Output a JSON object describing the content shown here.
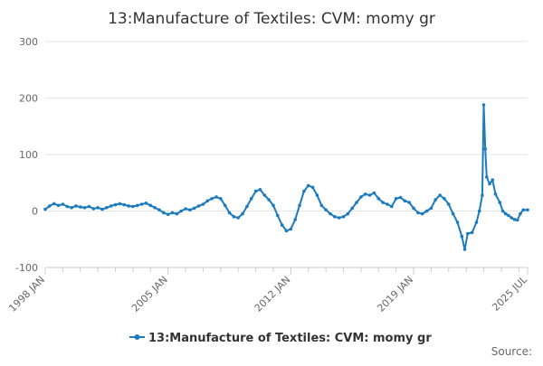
{
  "chart_data": {
    "type": "line",
    "title": "13:Manufacture of Textiles: CVM: momy gr",
    "xlabel": "",
    "ylabel": "",
    "x_range": [
      "1998-01",
      "2025-07"
    ],
    "ylim": [
      -100,
      300
    ],
    "yticks": [
      -100,
      0,
      100,
      200,
      300
    ],
    "xticks": [
      {
        "label": "1998 JAN",
        "date": "1998-01"
      },
      {
        "label": "2005 JAN",
        "date": "2005-01"
      },
      {
        "label": "2012 JAN",
        "date": "2012-01"
      },
      {
        "label": "2019 JAN",
        "date": "2019-01"
      },
      {
        "label": "2025 JUL",
        "date": "2025-07"
      }
    ],
    "minor_tick_years": [
      1999,
      2000,
      2001,
      2002,
      2003,
      2004,
      2006,
      2007,
      2008,
      2009,
      2010,
      2011,
      2013,
      2014,
      2015,
      2016,
      2017,
      2018,
      2020,
      2021,
      2022,
      2023,
      2024,
      2025
    ],
    "grid": true,
    "legend_position": "bottom",
    "color": "#1c7bbf",
    "series": [
      {
        "name": "13:Manufacture of Textiles: CVM: momy gr",
        "points": [
          [
            "1998-01",
            3
          ],
          [
            "1998-04",
            9
          ],
          [
            "1998-07",
            13
          ],
          [
            "1998-10",
            10
          ],
          [
            "1999-01",
            12
          ],
          [
            "1999-04",
            8
          ],
          [
            "1999-07",
            6
          ],
          [
            "1999-10",
            9
          ],
          [
            "2000-01",
            7
          ],
          [
            "2000-04",
            6
          ],
          [
            "2000-07",
            8
          ],
          [
            "2000-10",
            4
          ],
          [
            "2001-01",
            6
          ],
          [
            "2001-04",
            3
          ],
          [
            "2001-07",
            6
          ],
          [
            "2001-10",
            9
          ],
          [
            "2002-01",
            11
          ],
          [
            "2002-04",
            13
          ],
          [
            "2002-07",
            11
          ],
          [
            "2002-10",
            9
          ],
          [
            "2003-01",
            8
          ],
          [
            "2003-04",
            10
          ],
          [
            "2003-07",
            12
          ],
          [
            "2003-10",
            14
          ],
          [
            "2004-01",
            10
          ],
          [
            "2004-04",
            6
          ],
          [
            "2004-07",
            2
          ],
          [
            "2004-10",
            -3
          ],
          [
            "2005-01",
            -6
          ],
          [
            "2005-04",
            -3
          ],
          [
            "2005-07",
            -5
          ],
          [
            "2005-10",
            0
          ],
          [
            "2006-01",
            4
          ],
          [
            "2006-04",
            2
          ],
          [
            "2006-07",
            5
          ],
          [
            "2006-10",
            9
          ],
          [
            "2007-01",
            12
          ],
          [
            "2007-04",
            18
          ],
          [
            "2007-07",
            22
          ],
          [
            "2007-10",
            25
          ],
          [
            "2008-01",
            22
          ],
          [
            "2008-04",
            10
          ],
          [
            "2008-07",
            -3
          ],
          [
            "2008-10",
            -10
          ],
          [
            "2009-01",
            -12
          ],
          [
            "2009-04",
            -5
          ],
          [
            "2009-07",
            8
          ],
          [
            "2009-10",
            22
          ],
          [
            "2010-01",
            35
          ],
          [
            "2010-04",
            38
          ],
          [
            "2010-07",
            28
          ],
          [
            "2010-10",
            20
          ],
          [
            "2011-01",
            10
          ],
          [
            "2011-04",
            -8
          ],
          [
            "2011-07",
            -25
          ],
          [
            "2011-10",
            -35
          ],
          [
            "2012-01",
            -32
          ],
          [
            "2012-04",
            -15
          ],
          [
            "2012-07",
            10
          ],
          [
            "2012-10",
            35
          ],
          [
            "2013-01",
            45
          ],
          [
            "2013-04",
            42
          ],
          [
            "2013-07",
            28
          ],
          [
            "2013-10",
            10
          ],
          [
            "2014-01",
            2
          ],
          [
            "2014-04",
            -5
          ],
          [
            "2014-07",
            -10
          ],
          [
            "2014-10",
            -12
          ],
          [
            "2015-01",
            -10
          ],
          [
            "2015-04",
            -5
          ],
          [
            "2015-07",
            5
          ],
          [
            "2015-10",
            15
          ],
          [
            "2016-01",
            25
          ],
          [
            "2016-04",
            30
          ],
          [
            "2016-07",
            28
          ],
          [
            "2016-10",
            32
          ],
          [
            "2017-01",
            22
          ],
          [
            "2017-04",
            15
          ],
          [
            "2017-07",
            12
          ],
          [
            "2017-10",
            8
          ],
          [
            "2018-01",
            22
          ],
          [
            "2018-04",
            24
          ],
          [
            "2018-07",
            18
          ],
          [
            "2018-10",
            15
          ],
          [
            "2019-01",
            5
          ],
          [
            "2019-04",
            -3
          ],
          [
            "2019-07",
            -5
          ],
          [
            "2019-10",
            0
          ],
          [
            "2020-01",
            5
          ],
          [
            "2020-04",
            20
          ],
          [
            "2020-07",
            28
          ],
          [
            "2020-10",
            22
          ],
          [
            "2021-01",
            12
          ],
          [
            "2021-04",
            -5
          ],
          [
            "2021-07",
            -20
          ],
          [
            "2021-10",
            -45
          ],
          [
            "2021-12",
            -68
          ],
          [
            "2022-02",
            -40
          ],
          [
            "2022-05",
            -38
          ],
          [
            "2022-08",
            -20
          ],
          [
            "2022-10",
            0
          ],
          [
            "2022-12",
            28
          ],
          [
            "2023-01",
            188
          ],
          [
            "2023-02",
            110
          ],
          [
            "2023-03",
            60
          ],
          [
            "2023-05",
            48
          ],
          [
            "2023-07",
            55
          ],
          [
            "2023-09",
            30
          ],
          [
            "2023-12",
            15
          ],
          [
            "2024-02",
            0
          ],
          [
            "2024-04",
            -5
          ],
          [
            "2024-06",
            -8
          ],
          [
            "2024-08",
            -12
          ],
          [
            "2024-10",
            -15
          ],
          [
            "2024-12",
            -16
          ],
          [
            "2025-02",
            -5
          ],
          [
            "2025-04",
            2
          ],
          [
            "2025-07",
            2
          ]
        ]
      }
    ]
  },
  "source_label": "Source:"
}
